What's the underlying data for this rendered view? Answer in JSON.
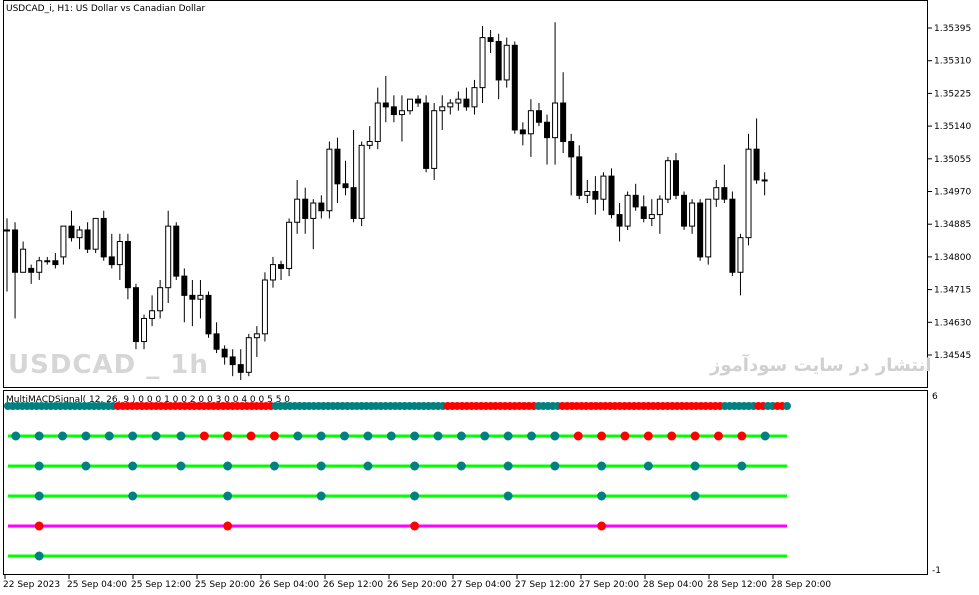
{
  "chart": {
    "title": "USDCAD_i, H1:  US Dollar vs Canadian Dollar",
    "watermark_symbol": "USDCAD _ 1h",
    "watermark_site": "انتشار در سایت سودآموز",
    "bar_up_color": "#ffffff",
    "bar_down_color": "#000000"
  },
  "indicator": {
    "title": "MultiMACDSignal( 12, 26, 9 ) 0 0 0 1 0 0 2 0 0 3 0 0 4 0 0 5 5 0",
    "scale_max": "6",
    "scale_min": "-1",
    "colors": {
      "up": "#008080",
      "down": "#ff0000",
      "line_up": "#00ff00",
      "line_down": "#ff00ff"
    }
  },
  "chart_data": {
    "type": "candlestick",
    "y_axis_labels": [
      "1.35395",
      "1.35310",
      "1.35225",
      "1.35140",
      "1.35055",
      "1.34970",
      "1.34885",
      "1.34800",
      "1.34715",
      "1.34630",
      "1.34545"
    ],
    "x_axis_labels": [
      "22 Sep 2023",
      "25 Sep 04:00",
      "25 Sep 12:00",
      "25 Sep 20:00",
      "26 Sep 04:00",
      "26 Sep 12:00",
      "26 Sep 20:00",
      "27 Sep 04:00",
      "27 Sep 12:00",
      "27 Sep 20:00",
      "28 Sep 04:00",
      "28 Sep 12:00",
      "28 Sep 20:00"
    ],
    "candles": [
      {
        "o": 1.3487,
        "h": 1.349,
        "l": 1.3471,
        "c": 1.3487
      },
      {
        "o": 1.3487,
        "h": 1.3489,
        "l": 1.3464,
        "c": 1.3476
      },
      {
        "o": 1.3476,
        "h": 1.3484,
        "l": 1.3476,
        "c": 1.3482
      },
      {
        "o": 1.3477,
        "h": 1.3478,
        "l": 1.3473,
        "c": 1.3476
      },
      {
        "o": 1.3476,
        "h": 1.348,
        "l": 1.3474,
        "c": 1.3479
      },
      {
        "o": 1.3479,
        "h": 1.348,
        "l": 1.3478,
        "c": 1.3479
      },
      {
        "o": 1.3479,
        "h": 1.3481,
        "l": 1.3477,
        "c": 1.3478
      },
      {
        "o": 1.348,
        "h": 1.3488,
        "l": 1.3478,
        "c": 1.3488
      },
      {
        "o": 1.3488,
        "h": 1.3492,
        "l": 1.3484,
        "c": 1.3485
      },
      {
        "o": 1.3485,
        "h": 1.3488,
        "l": 1.3482,
        "c": 1.3487
      },
      {
        "o": 1.3487,
        "h": 1.3489,
        "l": 1.3481,
        "c": 1.3482
      },
      {
        "o": 1.3482,
        "h": 1.349,
        "l": 1.3481,
        "c": 1.349
      },
      {
        "o": 1.349,
        "h": 1.3492,
        "l": 1.3479,
        "c": 1.348
      },
      {
        "o": 1.348,
        "h": 1.3486,
        "l": 1.3477,
        "c": 1.3478
      },
      {
        "o": 1.3478,
        "h": 1.3486,
        "l": 1.3474,
        "c": 1.3484
      },
      {
        "o": 1.3484,
        "h": 1.3486,
        "l": 1.3469,
        "c": 1.3472
      },
      {
        "o": 1.3472,
        "h": 1.3473,
        "l": 1.3456,
        "c": 1.3458
      },
      {
        "o": 1.3458,
        "h": 1.3465,
        "l": 1.3456,
        "c": 1.3464
      },
      {
        "o": 1.3464,
        "h": 1.347,
        "l": 1.3462,
        "c": 1.3466
      },
      {
        "o": 1.3466,
        "h": 1.3474,
        "l": 1.3464,
        "c": 1.3472
      },
      {
        "o": 1.3472,
        "h": 1.3492,
        "l": 1.3468,
        "c": 1.3488
      },
      {
        "o": 1.3488,
        "h": 1.3489,
        "l": 1.3474,
        "c": 1.3475
      },
      {
        "o": 1.3475,
        "h": 1.3477,
        "l": 1.3463,
        "c": 1.347
      },
      {
        "o": 1.347,
        "h": 1.3474,
        "l": 1.3462,
        "c": 1.3469
      },
      {
        "o": 1.3469,
        "h": 1.3474,
        "l": 1.3464,
        "c": 1.347
      },
      {
        "o": 1.347,
        "h": 1.3471,
        "l": 1.3459,
        "c": 1.346
      },
      {
        "o": 1.346,
        "h": 1.3463,
        "l": 1.3455,
        "c": 1.3456
      },
      {
        "o": 1.3456,
        "h": 1.3457,
        "l": 1.3452,
        "c": 1.3454
      },
      {
        "o": 1.3454,
        "h": 1.3456,
        "l": 1.3449,
        "c": 1.3452
      },
      {
        "o": 1.3452,
        "h": 1.3456,
        "l": 1.3448,
        "c": 1.345
      },
      {
        "o": 1.345,
        "h": 1.346,
        "l": 1.3449,
        "c": 1.3459
      },
      {
        "o": 1.3459,
        "h": 1.3462,
        "l": 1.3454,
        "c": 1.346
      },
      {
        "o": 1.346,
        "h": 1.3476,
        "l": 1.3458,
        "c": 1.3474
      },
      {
        "o": 1.3474,
        "h": 1.348,
        "l": 1.3472,
        "c": 1.3478
      },
      {
        "o": 1.3478,
        "h": 1.3479,
        "l": 1.3474,
        "c": 1.3477
      },
      {
        "o": 1.3477,
        "h": 1.349,
        "l": 1.3475,
        "c": 1.3489
      },
      {
        "o": 1.3489,
        "h": 1.35,
        "l": 1.3486,
        "c": 1.3495
      },
      {
        "o": 1.3495,
        "h": 1.3498,
        "l": 1.3486,
        "c": 1.349
      },
      {
        "o": 1.349,
        "h": 1.3495,
        "l": 1.3482,
        "c": 1.3494
      },
      {
        "o": 1.3494,
        "h": 1.3496,
        "l": 1.349,
        "c": 1.3492
      },
      {
        "o": 1.3492,
        "h": 1.351,
        "l": 1.349,
        "c": 1.3508
      },
      {
        "o": 1.3508,
        "h": 1.3511,
        "l": 1.3494,
        "c": 1.3499
      },
      {
        "o": 1.3499,
        "h": 1.3505,
        "l": 1.3496,
        "c": 1.3498
      },
      {
        "o": 1.3498,
        "h": 1.3513,
        "l": 1.3489,
        "c": 1.349
      },
      {
        "o": 1.349,
        "h": 1.351,
        "l": 1.3488,
        "c": 1.3509
      },
      {
        "o": 1.3509,
        "h": 1.3514,
        "l": 1.3508,
        "c": 1.351
      },
      {
        "o": 1.351,
        "h": 1.3524,
        "l": 1.3508,
        "c": 1.352
      },
      {
        "o": 1.352,
        "h": 1.3527,
        "l": 1.3515,
        "c": 1.3519
      },
      {
        "o": 1.3519,
        "h": 1.3522,
        "l": 1.3515,
        "c": 1.3517
      },
      {
        "o": 1.3517,
        "h": 1.3522,
        "l": 1.351,
        "c": 1.3518
      },
      {
        "o": 1.3518,
        "h": 1.3521,
        "l": 1.3517,
        "c": 1.3521
      },
      {
        "o": 1.3521,
        "h": 1.3522,
        "l": 1.3519,
        "c": 1.352
      },
      {
        "o": 1.352,
        "h": 1.3522,
        "l": 1.3502,
        "c": 1.3503
      },
      {
        "o": 1.3503,
        "h": 1.352,
        "l": 1.35,
        "c": 1.3518
      },
      {
        "o": 1.3518,
        "h": 1.3522,
        "l": 1.3513,
        "c": 1.3519
      },
      {
        "o": 1.3519,
        "h": 1.3521,
        "l": 1.3517,
        "c": 1.352
      },
      {
        "o": 1.352,
        "h": 1.3523,
        "l": 1.3518,
        "c": 1.3521
      },
      {
        "o": 1.3521,
        "h": 1.3524,
        "l": 1.3518,
        "c": 1.3519
      },
      {
        "o": 1.3519,
        "h": 1.3526,
        "l": 1.3517,
        "c": 1.3524
      },
      {
        "o": 1.3524,
        "h": 1.354,
        "l": 1.352,
        "c": 1.3537
      },
      {
        "o": 1.3537,
        "h": 1.3539,
        "l": 1.3533,
        "c": 1.3536
      },
      {
        "o": 1.3536,
        "h": 1.3538,
        "l": 1.3521,
        "c": 1.3526
      },
      {
        "o": 1.3526,
        "h": 1.3537,
        "l": 1.3524,
        "c": 1.3535
      },
      {
        "o": 1.3535,
        "h": 1.3536,
        "l": 1.3512,
        "c": 1.3513
      },
      {
        "o": 1.3513,
        "h": 1.3515,
        "l": 1.3509,
        "c": 1.3512
      },
      {
        "o": 1.3512,
        "h": 1.3521,
        "l": 1.3506,
        "c": 1.3518
      },
      {
        "o": 1.3518,
        "h": 1.352,
        "l": 1.3514,
        "c": 1.3515
      },
      {
        "o": 1.3515,
        "h": 1.3517,
        "l": 1.3504,
        "c": 1.3511
      },
      {
        "o": 1.3511,
        "h": 1.3541,
        "l": 1.3504,
        "c": 1.352
      },
      {
        "o": 1.352,
        "h": 1.3528,
        "l": 1.3507,
        "c": 1.351
      },
      {
        "o": 1.351,
        "h": 1.3512,
        "l": 1.3496,
        "c": 1.3506
      },
      {
        "o": 1.3506,
        "h": 1.3509,
        "l": 1.3495,
        "c": 1.3496
      },
      {
        "o": 1.3496,
        "h": 1.35,
        "l": 1.3494,
        "c": 1.3497
      },
      {
        "o": 1.3497,
        "h": 1.3501,
        "l": 1.3491,
        "c": 1.3495
      },
      {
        "o": 1.3495,
        "h": 1.3502,
        "l": 1.3492,
        "c": 1.3501
      },
      {
        "o": 1.3501,
        "h": 1.3503,
        "l": 1.349,
        "c": 1.3491
      },
      {
        "o": 1.3491,
        "h": 1.3494,
        "l": 1.3484,
        "c": 1.3488
      },
      {
        "o": 1.3488,
        "h": 1.3497,
        "l": 1.3487,
        "c": 1.3496
      },
      {
        "o": 1.3496,
        "h": 1.3499,
        "l": 1.3492,
        "c": 1.3493
      },
      {
        "o": 1.3493,
        "h": 1.3496,
        "l": 1.3489,
        "c": 1.349
      },
      {
        "o": 1.349,
        "h": 1.3495,
        "l": 1.3488,
        "c": 1.3491
      },
      {
        "o": 1.3491,
        "h": 1.3496,
        "l": 1.3486,
        "c": 1.3495
      },
      {
        "o": 1.3495,
        "h": 1.3506,
        "l": 1.3494,
        "c": 1.3505
      },
      {
        "o": 1.3505,
        "h": 1.3507,
        "l": 1.3495,
        "c": 1.3496
      },
      {
        "o": 1.3496,
        "h": 1.3497,
        "l": 1.3487,
        "c": 1.3488
      },
      {
        "o": 1.3488,
        "h": 1.3495,
        "l": 1.3486,
        "c": 1.3494
      },
      {
        "o": 1.3494,
        "h": 1.3495,
        "l": 1.3479,
        "c": 1.348
      },
      {
        "o": 1.348,
        "h": 1.3495,
        "l": 1.3478,
        "c": 1.3495
      },
      {
        "o": 1.3495,
        "h": 1.35,
        "l": 1.3493,
        "c": 1.3498
      },
      {
        "o": 1.3498,
        "h": 1.3504,
        "l": 1.3494,
        "c": 1.3495
      },
      {
        "o": 1.3495,
        "h": 1.3497,
        "l": 1.3475,
        "c": 1.3476
      },
      {
        "o": 1.3476,
        "h": 1.3486,
        "l": 1.347,
        "c": 1.3485
      },
      {
        "o": 1.3485,
        "h": 1.3512,
        "l": 1.3483,
        "c": 1.3508
      },
      {
        "o": 1.3508,
        "h": 1.3516,
        "l": 1.3499,
        "c": 1.35
      },
      {
        "o": 1.35,
        "h": 1.3502,
        "l": 1.3496,
        "c": 1.35
      }
    ],
    "signal_rows": [
      {
        "line": "up",
        "dots": [
          {
            "x": 0.01,
            "c": "up"
          },
          {
            "x": 0.04,
            "c": "up"
          },
          {
            "x": 0.07,
            "c": "up"
          },
          {
            "x": 0.1,
            "c": "up"
          },
          {
            "x": 0.13,
            "c": "up"
          },
          {
            "x": 0.16,
            "c": "up"
          },
          {
            "x": 0.19,
            "c": "up"
          },
          {
            "x": 0.222,
            "c": "up"
          },
          {
            "x": 0.252,
            "c": "down"
          },
          {
            "x": 0.282,
            "c": "down"
          },
          {
            "x": 0.312,
            "c": "down"
          },
          {
            "x": 0.342,
            "c": "down"
          },
          {
            "x": 0.372,
            "c": "up"
          },
          {
            "x": 0.402,
            "c": "up"
          },
          {
            "x": 0.432,
            "c": "up"
          },
          {
            "x": 0.462,
            "c": "up"
          },
          {
            "x": 0.492,
            "c": "up"
          },
          {
            "x": 0.522,
            "c": "up"
          },
          {
            "x": 0.552,
            "c": "up"
          },
          {
            "x": 0.582,
            "c": "up"
          },
          {
            "x": 0.612,
            "c": "up"
          },
          {
            "x": 0.642,
            "c": "up"
          },
          {
            "x": 0.672,
            "c": "up"
          },
          {
            "x": 0.702,
            "c": "up"
          },
          {
            "x": 0.732,
            "c": "down"
          },
          {
            "x": 0.762,
            "c": "down"
          },
          {
            "x": 0.792,
            "c": "down"
          },
          {
            "x": 0.822,
            "c": "down"
          },
          {
            "x": 0.852,
            "c": "down"
          },
          {
            "x": 0.882,
            "c": "down"
          },
          {
            "x": 0.912,
            "c": "down"
          },
          {
            "x": 0.942,
            "c": "down"
          },
          {
            "x": 0.972,
            "c": "up"
          }
        ]
      },
      {
        "line": "up",
        "dots": [
          {
            "x": 0.04,
            "c": "up"
          },
          {
            "x": 0.1,
            "c": "up"
          },
          {
            "x": 0.16,
            "c": "up"
          },
          {
            "x": 0.222,
            "c": "up"
          },
          {
            "x": 0.282,
            "c": "up"
          },
          {
            "x": 0.342,
            "c": "up"
          },
          {
            "x": 0.402,
            "c": "up"
          },
          {
            "x": 0.462,
            "c": "up"
          },
          {
            "x": 0.522,
            "c": "up"
          },
          {
            "x": 0.582,
            "c": "up"
          },
          {
            "x": 0.642,
            "c": "up"
          },
          {
            "x": 0.702,
            "c": "up"
          },
          {
            "x": 0.762,
            "c": "up"
          },
          {
            "x": 0.822,
            "c": "up"
          },
          {
            "x": 0.882,
            "c": "up"
          },
          {
            "x": 0.942,
            "c": "up"
          }
        ]
      },
      {
        "line": "up",
        "dots": [
          {
            "x": 0.04,
            "c": "up"
          },
          {
            "x": 0.16,
            "c": "up"
          },
          {
            "x": 0.282,
            "c": "up"
          },
          {
            "x": 0.402,
            "c": "up"
          },
          {
            "x": 0.522,
            "c": "up"
          },
          {
            "x": 0.642,
            "c": "up"
          },
          {
            "x": 0.762,
            "c": "up"
          },
          {
            "x": 0.882,
            "c": "up"
          }
        ]
      },
      {
        "line": "down",
        "dots": [
          {
            "x": 0.04,
            "c": "down"
          },
          {
            "x": 0.282,
            "c": "down"
          },
          {
            "x": 0.522,
            "c": "down"
          },
          {
            "x": 0.762,
            "c": "down"
          }
        ]
      },
      {
        "line": "up",
        "dots": [
          {
            "x": 0.04,
            "c": "up"
          }
        ]
      }
    ],
    "top_row_colors": "uuuuuuuuuuuuuuuuuuuuuuuddddddddddddddddddddddddddddddddduuuuuuuuuuuuuuuuuuuuuuuuuuuuuuuuuuuuddddddddddddddddddduuuuudddddddddddddddddddddddddddddddddduuuuuuudduuddu"
  }
}
